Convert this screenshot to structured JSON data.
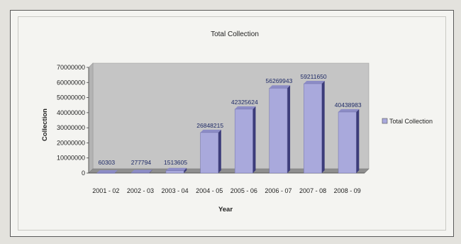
{
  "chart_data": {
    "type": "bar",
    "title": "Total Collection",
    "xlabel": "Year",
    "ylabel": "Collection",
    "categories": [
      "2001 - 02",
      "2002 - 03",
      "2003 - 04",
      "2004 - 05",
      "2005 - 06",
      "2006 - 07",
      "2007 - 08",
      "2008 - 09"
    ],
    "series": [
      {
        "name": "Total Collection",
        "values": [
          60303,
          277794,
          1513605,
          26848215,
          42325624,
          56269943,
          59211650,
          40438983
        ],
        "labels": [
          "60303",
          "277794",
          "1513605",
          "26848215",
          "42325624",
          "56269943",
          "59211650",
          "40438983"
        ]
      }
    ],
    "ylim": [
      0,
      70000000
    ],
    "yticks": [
      "0",
      "10000000",
      "20000000",
      "30000000",
      "40000000",
      "50000000",
      "60000000",
      "70000000"
    ],
    "grid": false,
    "legend_position": "right",
    "colors": {
      "bar": "#a9a9dc",
      "bar_side": "#3c3c7a",
      "plot_background": "#c5c5c5",
      "plot_floor": "#8f8f8f"
    }
  }
}
